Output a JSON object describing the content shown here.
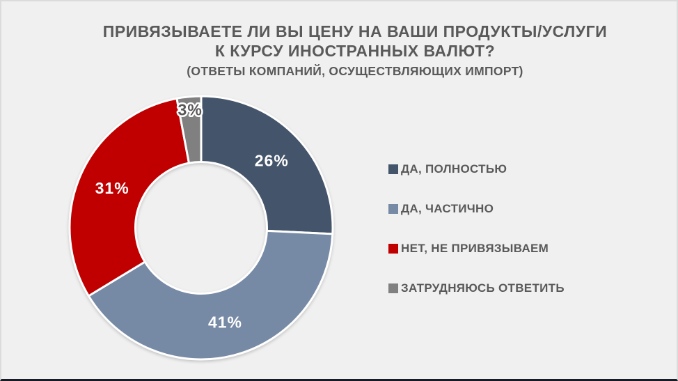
{
  "header": {
    "title_line1": "ПРИВЯЗЫВАЕТЕ ЛИ ВЫ ЦЕНУ НА ВАШИ ПРОДУКТЫ/УСЛУГИ",
    "title_line2": "К КУРСУ ИНОСТРАННЫХ ВАЛЮТ?",
    "subtitle": "(ОТВЕТЫ КОМПАНИЙ, ОСУЩЕСТВЛЯЮЩИХ ИМПОРТ)"
  },
  "colors": {
    "background": "#F0F0F0",
    "frame_border": "#DBDBDB",
    "bottom_bar": "#171B26",
    "text": "#595959",
    "slice_border": "#FFFFFF"
  },
  "chart_data": {
    "type": "pie",
    "subtype": "donut",
    "title": "ПРИВЯЗЫВАЕТЕ ЛИ ВЫ ЦЕНУ НА ВАШИ ПРОДУКТЫ/УСЛУГИ К КУРСУ ИНОСТРАННЫХ ВАЛЮТ?",
    "subtitle": "(ОТВЕТЫ КОМПАНИЙ, ОСУЩЕСТВЛЯЮЩИХ ИМПОРТ)",
    "categories": [
      "ДА, ПОЛНОСТЬЮ",
      "ДА, ЧАСТИЧНО",
      "НЕТ, НЕ ПРИВЯЗЫВАЕМ",
      "ЗАТРУДНЯЮСЬ ОТВЕТИТЬ"
    ],
    "values": [
      26,
      41,
      31,
      3
    ],
    "unit": "%",
    "start_angle": "top",
    "direction": "clockwise",
    "hole_ratio": 0.5,
    "legend_position": "right",
    "slices": [
      {
        "label": "ДА, ПОЛНОСТЬЮ",
        "value": 26,
        "pct_label": "26%",
        "color": "#44546A",
        "label_color": "#FFFFFF",
        "label_stroke": false,
        "label_outside": false
      },
      {
        "label": "ДА, ЧАСТИЧНО",
        "value": 41,
        "pct_label": "41%",
        "color": "#7689A5",
        "label_color": "#FFFFFF",
        "label_stroke": false,
        "label_outside": false
      },
      {
        "label": "НЕТ, НЕ ПРИВЯЗЫВАЕМ",
        "value": 31,
        "pct_label": "31%",
        "color": "#C00000",
        "label_color": "#FFFFFF",
        "label_stroke": false,
        "label_outside": false
      },
      {
        "label": "ЗАТРУДНЯЮСЬ ОТВЕТИТЬ",
        "value": 3,
        "pct_label": "3%",
        "color": "#808080",
        "label_color": "#595959",
        "label_stroke": true,
        "label_outside": true
      }
    ]
  }
}
